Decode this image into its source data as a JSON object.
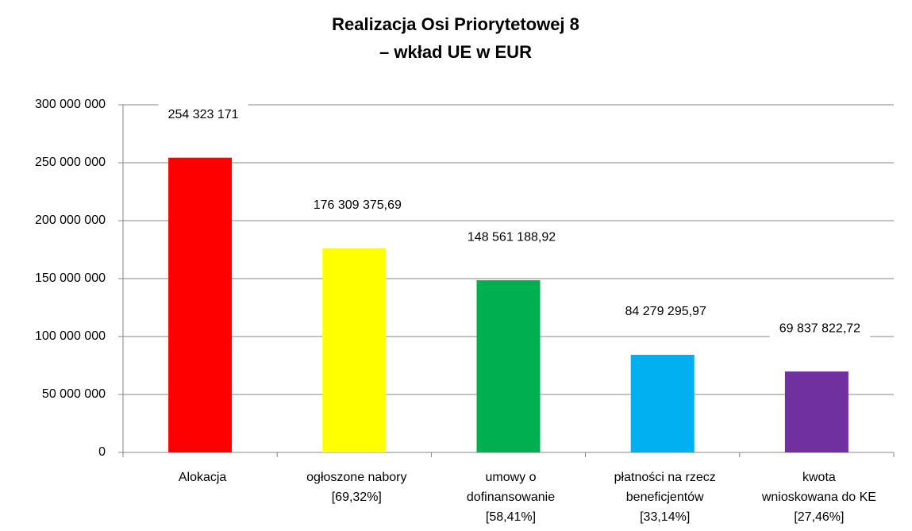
{
  "chart_data": {
    "type": "bar",
    "title": "Realizacja Osi Priorytetowej 8\n– wkład UE w EUR",
    "categories": [
      "Alokacja",
      "ogłoszone nabory\n[69,32%]",
      "umowy o\ndofinansowanie\n[58,41%]",
      "płatności na rzecz\nbeneficjentów\n[33,14%]",
      "kwota\nwnioskowana do KE\n[27,46%]"
    ],
    "values": [
      254323171,
      176309375.69,
      148561188.92,
      84279295.97,
      69837822.72
    ],
    "value_labels": [
      "254 323 171",
      "176 309 375,69",
      "148 561 188,92",
      "84 279 295,97",
      "69 837 822,72"
    ],
    "colors": [
      "#ff0000",
      "#ffff00",
      "#00b050",
      "#00b0f0",
      "#7030a0"
    ],
    "ylim": [
      0,
      300000000
    ],
    "yticks": [
      0,
      {
        "value": 50000000,
        "label": "50 000 000"
      },
      {
        "value": 100000000,
        "label": "100 000 000"
      },
      {
        "value": 150000000,
        "label": "150 000 000"
      },
      {
        "value": 200000000,
        "label": "200 000 000"
      },
      {
        "value": 250000000,
        "label": "250 000 000"
      },
      {
        "value": 300000000,
        "label": "300 000 000"
      }
    ],
    "grid": true
  }
}
